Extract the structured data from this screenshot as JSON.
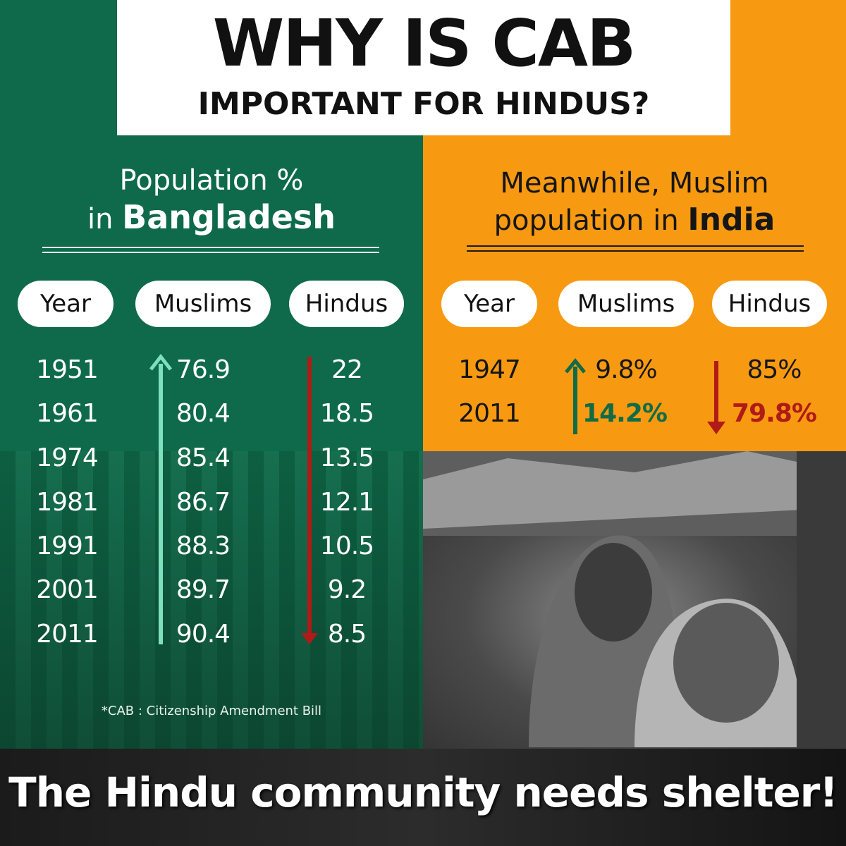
{
  "title": {
    "main": "WHY IS CAB",
    "sub": "IMPORTANT FOR HINDUS?"
  },
  "left_panel": {
    "heading_line1": "Population %",
    "heading_in": "in ",
    "heading_bold": "Bangladesh",
    "columns": [
      "Year",
      "Muslims",
      "Hindus"
    ]
  },
  "right_panel": {
    "heading_line1": "Meanwhile, Muslim",
    "heading_line2": "population in ",
    "heading_bold": "India",
    "columns": [
      "Year",
      "Muslims",
      "Hindus"
    ]
  },
  "footnote": "*CAB : Citizenship Amendment Bill",
  "tagline": "The Hindu community needs shelter!",
  "colors": {
    "green_panel": "#0e6a4a",
    "orange_panel": "#f79a12",
    "up_arrow_left": "#7fe0c0",
    "down_arrow": "#b01a17",
    "up_arrow_right": "#116b46"
  },
  "chart_data": [
    {
      "type": "table",
      "title": "Population % in Bangladesh",
      "columns": [
        "Year",
        "Muslims",
        "Hindus"
      ],
      "rows": [
        [
          "1951",
          "76.9",
          "22"
        ],
        [
          "1961",
          "80.4",
          "18.5"
        ],
        [
          "1974",
          "85.4",
          "13.5"
        ],
        [
          "1981",
          "86.7",
          "12.1"
        ],
        [
          "1991",
          "88.3",
          "10.5"
        ],
        [
          "2001",
          "89.7",
          "9.2"
        ],
        [
          "2011",
          "90.4",
          "8.5"
        ]
      ]
    },
    {
      "type": "table",
      "title": "Meanwhile, Muslim population in India",
      "columns": [
        "Year",
        "Muslims",
        "Hindus"
      ],
      "rows": [
        [
          "1947",
          "9.8%",
          "85%"
        ],
        [
          "2011",
          "14.2%",
          "79.8%"
        ]
      ]
    }
  ]
}
